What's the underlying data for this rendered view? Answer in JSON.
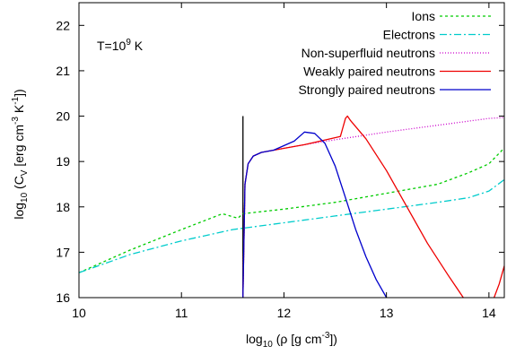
{
  "chart_data": {
    "type": "line",
    "annotation": {
      "prefix": "T=10",
      "exponent": "9",
      "suffix": " K"
    },
    "xlabel": {
      "base": "log",
      "base_sub": "10",
      "body": " (ρ [g cm",
      "sup": "-3",
      "tail": "])"
    },
    "ylabel": {
      "base": "log",
      "base_sub": "10",
      "mid": " (C",
      "mid_sub": "V",
      "body": " [erg cm",
      "sup1": "-3",
      "k": " K",
      "sup2": "-1",
      "tail": "])"
    },
    "xlim": [
      10,
      14.15
    ],
    "ylim": [
      16,
      22.5
    ],
    "xticks": [
      10,
      11,
      12,
      13,
      14
    ],
    "yticks": [
      16,
      17,
      18,
      19,
      20,
      21,
      22
    ],
    "grid": false,
    "legend_position": "top-right",
    "series": [
      {
        "name": "Ions",
        "color": "#00cc00",
        "dash": "3,3",
        "x": [
          10.0,
          10.5,
          11.0,
          11.4,
          11.55,
          11.6,
          12.0,
          12.5,
          13.0,
          13.5,
          13.8,
          14.0,
          14.15
        ],
        "y": [
          16.55,
          17.05,
          17.5,
          17.85,
          17.75,
          17.85,
          17.95,
          18.1,
          18.3,
          18.5,
          18.75,
          18.95,
          19.3
        ]
      },
      {
        "name": "Electrons",
        "color": "#00cccc",
        "dash": "8,3,2,3",
        "x": [
          10.0,
          10.5,
          11.0,
          11.5,
          12.0,
          12.5,
          13.0,
          13.5,
          13.8,
          14.0,
          14.15
        ],
        "y": [
          16.55,
          16.95,
          17.25,
          17.5,
          17.65,
          17.8,
          17.95,
          18.1,
          18.2,
          18.35,
          18.6
        ]
      },
      {
        "name": "Non-superfluid neutrons",
        "color": "#cc00cc",
        "dash": "1,2",
        "x": [
          11.6,
          11.62,
          11.65,
          11.7,
          11.78,
          11.9,
          12.2,
          12.5,
          13.0,
          13.5,
          14.0,
          14.15
        ],
        "y": [
          16.0,
          18.5,
          18.95,
          19.12,
          19.2,
          19.25,
          19.37,
          19.48,
          19.65,
          19.8,
          19.95,
          19.97
        ]
      },
      {
        "name": "Weakly paired neutrons",
        "color": "#ee0000",
        "dash": "",
        "x": [
          11.6,
          11.62,
          11.65,
          11.7,
          11.78,
          11.9,
          12.2,
          12.55,
          12.6,
          12.62,
          12.65,
          12.8,
          13.0,
          13.2,
          13.4,
          13.6,
          13.75
        ],
        "y": [
          16.0,
          18.5,
          18.95,
          19.12,
          19.2,
          19.25,
          19.37,
          19.55,
          19.95,
          20.0,
          19.9,
          19.5,
          18.8,
          18.0,
          17.2,
          16.5,
          16.0
        ]
      },
      {
        "name": "Strongly paired neutrons",
        "color": "#0000cc",
        "dash": "",
        "x": [
          11.6,
          11.62,
          11.65,
          11.7,
          11.78,
          11.9,
          12.1,
          12.2,
          12.3,
          12.4,
          12.5,
          12.6,
          12.7,
          12.8,
          12.9,
          13.0
        ],
        "y": [
          16.0,
          18.5,
          18.95,
          19.12,
          19.2,
          19.25,
          19.45,
          19.65,
          19.62,
          19.4,
          18.9,
          18.2,
          17.5,
          16.9,
          16.4,
          16.0
        ]
      }
    ],
    "extra_segments": [
      {
        "series": "Weakly paired neutrons",
        "x": [
          14.05,
          14.1,
          14.15
        ],
        "y": [
          16.0,
          16.3,
          16.7
        ]
      }
    ],
    "vertical_line": {
      "x": 11.6,
      "y": [
        16.0,
        20.0
      ],
      "color": "#000000"
    }
  }
}
